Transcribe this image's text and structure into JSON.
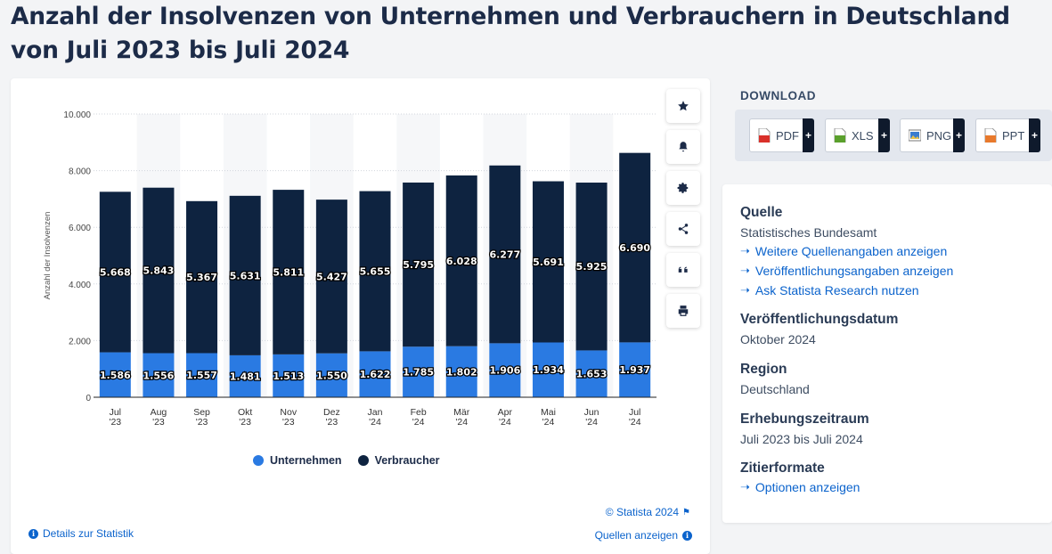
{
  "page": {
    "title": "Anzahl der Insolvenzen von Unternehmen und Verbrauchern in Deutschland von Juli 2023 bis Juli 2024"
  },
  "colors": {
    "unternehmen": "#2a7ae2",
    "verbraucher": "#0e2340",
    "link": "#0b63cc"
  },
  "chart_data": {
    "type": "bar",
    "stacked": true,
    "title": "",
    "ylabel": "Anzahl der Insolvenzen",
    "xlabel": "",
    "ylim": [
      0,
      10000
    ],
    "yticks": [
      "0",
      "2.000",
      "4.000",
      "6.000",
      "8.000",
      "10.000"
    ],
    "ytick_values": [
      0,
      2000,
      4000,
      6000,
      8000,
      10000
    ],
    "categories": [
      [
        "Jul",
        "'23"
      ],
      [
        "Aug",
        "'23"
      ],
      [
        "Sep",
        "'23"
      ],
      [
        "Okt",
        "'23"
      ],
      [
        "Nov",
        "'23"
      ],
      [
        "Dez",
        "'23"
      ],
      [
        "Jan",
        "'24"
      ],
      [
        "Feb",
        "'24"
      ],
      [
        "Mär",
        "'24"
      ],
      [
        "Apr",
        "'24"
      ],
      [
        "Mai",
        "'24"
      ],
      [
        "Jun",
        "'24"
      ],
      [
        "Jul",
        "'24"
      ]
    ],
    "series": [
      {
        "name": "Unternehmen",
        "values": [
          1586,
          1556,
          1557,
          1481,
          1513,
          1550,
          1622,
          1785,
          1802,
          1906,
          1934,
          1653,
          1937
        ],
        "labels": [
          "1.586",
          "1.556",
          "1.557",
          "1.481",
          "1.513",
          "1.550",
          "1.622",
          "1.785",
          "1.802",
          "1.906",
          "1.934",
          "1.653",
          "1.937"
        ]
      },
      {
        "name": "Verbraucher",
        "values": [
          5668,
          5843,
          5367,
          5631,
          5811,
          5427,
          5655,
          5795,
          6028,
          6277,
          5691,
          5925,
          6690
        ],
        "labels": [
          "5.668",
          "5.843",
          "5.367",
          "5.631",
          "5.811",
          "5.427",
          "5.655",
          "5.795",
          "6.028",
          "6.277",
          "5.691",
          "5.925",
          "6.690"
        ]
      }
    ],
    "legend": [
      "Unternehmen",
      "Verbraucher"
    ],
    "legend_position": "bottom-center"
  },
  "chart_card": {
    "copyright": "© Statista 2024",
    "details_link": "Details zur Statistik",
    "sources_link": "Quellen anzeigen"
  },
  "toolbar": {
    "items": [
      "star-icon",
      "bell-icon",
      "gear-icon",
      "share-icon",
      "quote-icon",
      "print-icon"
    ]
  },
  "download": {
    "title": "DOWNLOAD",
    "buttons": [
      {
        "label": "PDF",
        "plus": "+"
      },
      {
        "label": "XLS",
        "plus": "+"
      },
      {
        "label": "PNG",
        "plus": "+"
      },
      {
        "label": "PPT",
        "plus": "+"
      }
    ]
  },
  "info": {
    "quelle_heading": "Quelle",
    "quelle_value": "Statistisches Bundesamt",
    "links": [
      "Weitere Quellenangaben anzeigen",
      "Veröffentlichungsangaben anzeigen",
      "Ask Statista Research nutzen"
    ],
    "pub_date_heading": "Veröffentlichungsdatum",
    "pub_date_value": "Oktober 2024",
    "region_heading": "Region",
    "region_value": "Deutschland",
    "period_heading": "Erhebungszeitraum",
    "period_value": "Juli 2023 bis Juli 2024",
    "cite_heading": "Zitierformate",
    "cite_link": "Optionen anzeigen"
  }
}
